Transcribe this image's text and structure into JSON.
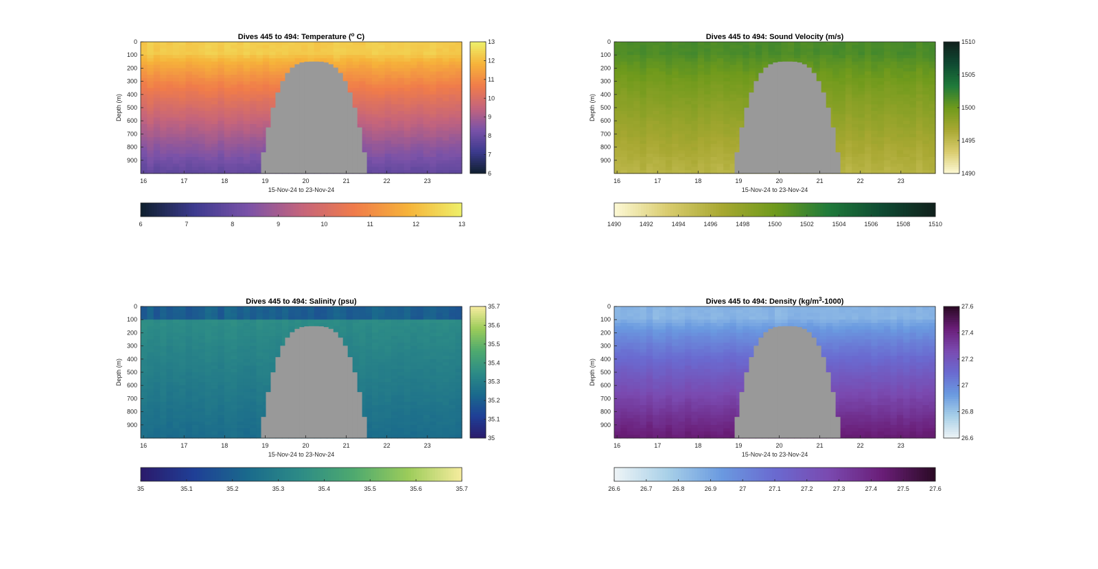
{
  "chart_data": [
    {
      "type": "heatmap",
      "title_main": "Dives 445 to 494: Temperature (",
      "title_sup": "o",
      "title_tail": " C)",
      "xlabel": "15-Nov-24 to 23-Nov-24",
      "ylabel": "Depth (m)",
      "x_ticks": [
        "16",
        "17",
        "18",
        "19",
        "20",
        "21",
        "22",
        "23"
      ],
      "x_tick_values": [
        16,
        17,
        18,
        19,
        20,
        21,
        22,
        23
      ],
      "xlim": [
        15.93,
        23.85
      ],
      "y_ticks": [
        "0",
        "100",
        "200",
        "300",
        "400",
        "500",
        "600",
        "700",
        "800",
        "900"
      ],
      "y_tick_values": [
        0,
        100,
        200,
        300,
        400,
        500,
        600,
        700,
        800,
        900
      ],
      "ylim": [
        0,
        1000
      ],
      "y_reversed": true,
      "value_range": [
        6,
        13
      ],
      "surface_value": 12.3,
      "deep_value": 7.8,
      "colorbar_ticks": [
        "6",
        "7",
        "8",
        "9",
        "10",
        "11",
        "12",
        "13"
      ],
      "colormap": [
        "#0f1f2e",
        "#3c3a8e",
        "#7a52a8",
        "#c4647c",
        "#f07c4a",
        "#f6b33a",
        "#eef06a"
      ],
      "colorbar_vertical": true,
      "colorbar_horizontal": true
    },
    {
      "type": "heatmap",
      "title_main": "Dives 445 to 494: Sound Velocity (m/s)",
      "title_sup": "",
      "title_tail": "",
      "xlabel": "15-Nov-24 to 23-Nov-24",
      "ylabel": "Depth (m)",
      "x_ticks": [
        "16",
        "17",
        "18",
        "19",
        "20",
        "21",
        "22",
        "23"
      ],
      "x_tick_values": [
        16,
        17,
        18,
        19,
        20,
        21,
        22,
        23
      ],
      "xlim": [
        15.93,
        23.85
      ],
      "y_ticks": [
        "0",
        "100",
        "200",
        "300",
        "400",
        "500",
        "600",
        "700",
        "800",
        "900"
      ],
      "y_tick_values": [
        0,
        100,
        200,
        300,
        400,
        500,
        600,
        700,
        800,
        900
      ],
      "ylim": [
        0,
        1000
      ],
      "y_reversed": true,
      "value_range": [
        1490,
        1510
      ],
      "surface_value": 1501.5,
      "deep_value": 1495.5,
      "colorbar_ticks": [
        "1490",
        "1495",
        "1500",
        "1505",
        "1510"
      ],
      "colorbar_ticks_horizontal": [
        "1490",
        "1492",
        "1494",
        "1496",
        "1498",
        "1500",
        "1502",
        "1504",
        "1506",
        "1508",
        "1510"
      ],
      "colormap": [
        "#fdf9d6",
        "#d9cc6e",
        "#a8a832",
        "#6f9a1c",
        "#1f7a3a",
        "#0f4a32",
        "#10201c"
      ],
      "colorbar_vertical": true,
      "colorbar_horizontal": true
    },
    {
      "type": "heatmap",
      "title_main": "Dives 445 to 494: Salinity (psu)",
      "title_sup": "",
      "title_tail": "",
      "xlabel": "15-Nov-24 to 23-Nov-24",
      "ylabel": "Depth (m)",
      "x_ticks": [
        "16",
        "17",
        "18",
        "19",
        "20",
        "21",
        "22",
        "23"
      ],
      "x_tick_values": [
        16,
        17,
        18,
        19,
        20,
        21,
        22,
        23
      ],
      "xlim": [
        15.93,
        23.85
      ],
      "y_ticks": [
        "0",
        "100",
        "200",
        "300",
        "400",
        "500",
        "600",
        "700",
        "800",
        "900"
      ],
      "y_tick_values": [
        0,
        100,
        200,
        300,
        400,
        500,
        600,
        700,
        800,
        900
      ],
      "ylim": [
        0,
        1000
      ],
      "y_reversed": true,
      "value_range": [
        35,
        35.7
      ],
      "surface_value": 35.28,
      "deep_value": 35.24,
      "colorbar_ticks": [
        "35",
        "35.1",
        "35.2",
        "35.3",
        "35.4",
        "35.5",
        "35.6",
        "35.7"
      ],
      "colormap": [
        "#2b1a6b",
        "#1f3f96",
        "#1a6a8c",
        "#2d8c86",
        "#4faa6e",
        "#9ccc5a",
        "#f6ec9e"
      ],
      "colorbar_vertical": true,
      "colorbar_horizontal": true
    },
    {
      "type": "heatmap",
      "title_main": "Dives 445 to 494: Density (kg/m",
      "title_sup": "3",
      "title_tail": "-1000)",
      "xlabel": "15-Nov-24 to 23-Nov-24",
      "ylabel": "Depth (m)",
      "x_ticks": [
        "16",
        "17",
        "18",
        "19",
        "20",
        "21",
        "22",
        "23"
      ],
      "x_tick_values": [
        16,
        17,
        18,
        19,
        20,
        21,
        22,
        23
      ],
      "xlim": [
        15.93,
        23.85
      ],
      "y_ticks": [
        "0",
        "100",
        "200",
        "300",
        "400",
        "500",
        "600",
        "700",
        "800",
        "900"
      ],
      "y_tick_values": [
        0,
        100,
        200,
        300,
        400,
        500,
        600,
        700,
        800,
        900
      ],
      "ylim": [
        0,
        1000
      ],
      "y_reversed": true,
      "value_range": [
        26.6,
        27.6
      ],
      "surface_value": 26.85,
      "deep_value": 27.45,
      "colorbar_ticks": [
        "26.6",
        "26.8",
        "27",
        "27.2",
        "27.4",
        "27.6"
      ],
      "colorbar_ticks_horizontal": [
        "26.6",
        "26.7",
        "26.8",
        "26.9",
        "27",
        "27.1",
        "27.2",
        "27.3",
        "27.4",
        "27.5",
        "27.6"
      ],
      "colormap": [
        "#eef4f6",
        "#a8d0e8",
        "#6a9ae0",
        "#6a6ad0",
        "#7a4ab0",
        "#6a1e78",
        "#2a0a24"
      ],
      "colorbar_vertical": true,
      "colorbar_horizontal": true
    }
  ],
  "gap": {
    "x_start": 18.9,
    "x_end": 21.5,
    "top_depth": 150,
    "color": "#999999"
  },
  "colors": {
    "axis": "#262626",
    "background": "#ffffff"
  }
}
